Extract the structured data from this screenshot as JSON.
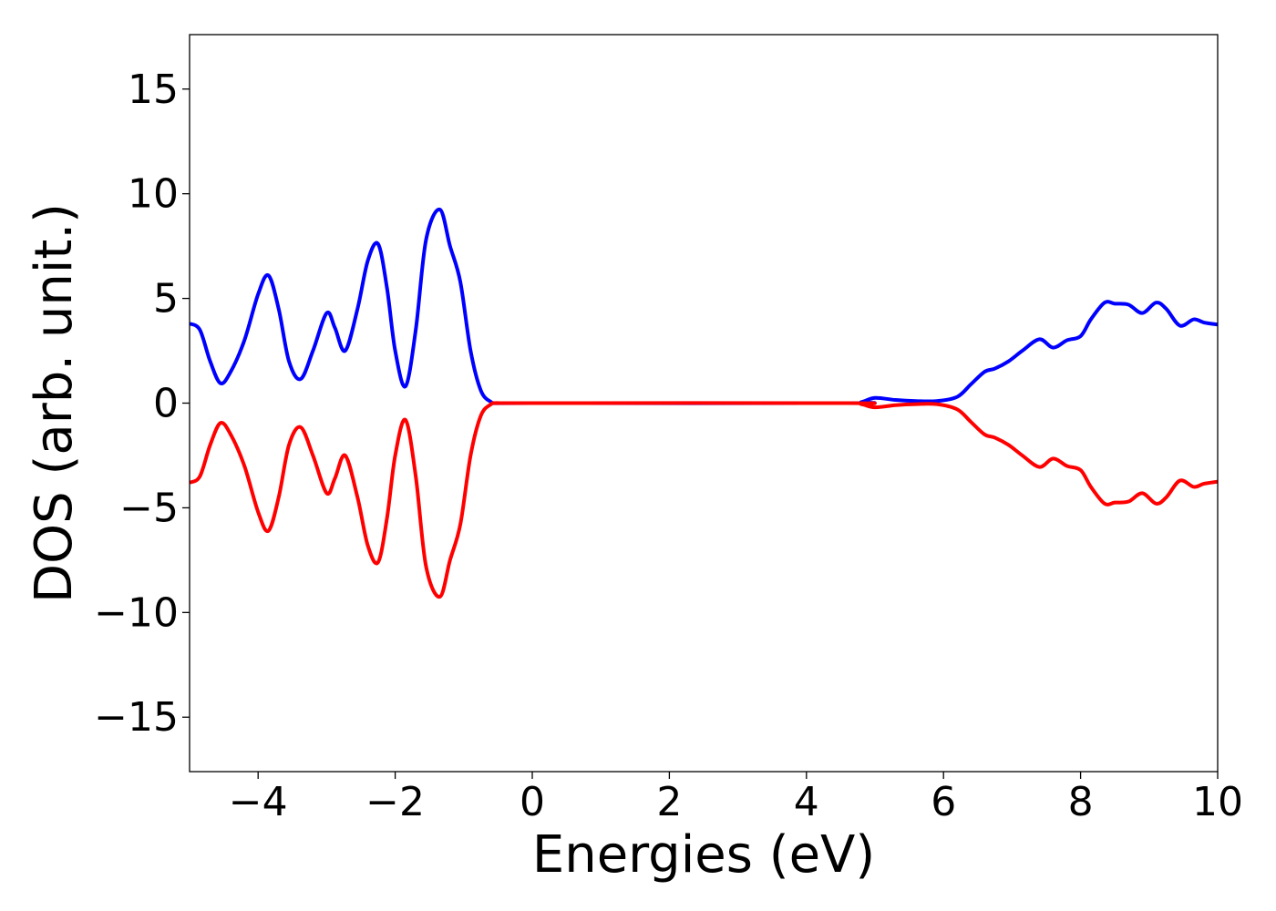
{
  "chart_data": {
    "type": "line",
    "title": "",
    "xlabel": "Energies (eV)",
    "ylabel": "DOS (arb. unit.)",
    "xlim": [
      -5,
      10
    ],
    "ylim": [
      -17.6,
      17.6
    ],
    "grid": false,
    "legend": "none",
    "x_ticks": [
      -4,
      -2,
      0,
      2,
      4,
      6,
      8,
      10
    ],
    "x_tick_labels": [
      "−4",
      "−2",
      "0",
      "2",
      "4",
      "6",
      "8",
      "10"
    ],
    "y_ticks": [
      15,
      10,
      5,
      0,
      -5,
      -10,
      -15
    ],
    "y_tick_labels": [
      "15",
      "10",
      "5",
      "0",
      "−5",
      "−10",
      "−15"
    ],
    "series": [
      {
        "color": "#0000ff",
        "x": [
          -5.0,
          -4.85,
          -4.7,
          -4.55,
          -4.4,
          -4.2,
          -4.0,
          -3.85,
          -3.7,
          -3.55,
          -3.38,
          -3.2,
          -3.0,
          -2.88,
          -2.73,
          -2.55,
          -2.4,
          -2.25,
          -2.12,
          -2.0,
          -1.85,
          -1.7,
          -1.55,
          -1.35,
          -1.2,
          -1.05,
          -0.9,
          -0.75,
          -0.6,
          -0.5,
          0.0,
          4.6,
          4.8,
          5.0,
          5.3,
          5.6,
          5.9,
          6.2,
          6.4,
          6.6,
          6.75,
          6.95,
          7.15,
          7.4,
          7.6,
          7.8,
          8.0,
          8.15,
          8.35,
          8.5,
          8.7,
          8.9,
          9.1,
          9.25,
          9.45,
          9.65,
          9.8,
          10.0
        ],
        "y": [
          3.8,
          3.5,
          2.0,
          0.95,
          1.5,
          3.0,
          5.2,
          6.1,
          4.5,
          2.0,
          1.15,
          2.5,
          4.3,
          3.6,
          2.5,
          4.5,
          6.8,
          7.6,
          5.5,
          2.5,
          0.8,
          3.5,
          7.8,
          9.25,
          7.5,
          5.8,
          2.5,
          0.6,
          0.05,
          0.0,
          0.0,
          0.0,
          0.05,
          0.25,
          0.15,
          0.1,
          0.1,
          0.3,
          0.9,
          1.5,
          1.65,
          2.0,
          2.5,
          3.05,
          2.65,
          3.0,
          3.2,
          4.0,
          4.8,
          4.75,
          4.7,
          4.3,
          4.8,
          4.5,
          3.7,
          4.0,
          3.85,
          3.75
        ]
      },
      {
        "color": "#ff0000",
        "x": [
          -5.0,
          -4.85,
          -4.7,
          -4.55,
          -4.4,
          -4.2,
          -4.0,
          -3.85,
          -3.7,
          -3.55,
          -3.38,
          -3.2,
          -3.0,
          -2.88,
          -2.73,
          -2.55,
          -2.4,
          -2.25,
          -2.12,
          -2.0,
          -1.85,
          -1.7,
          -1.55,
          -1.35,
          -1.2,
          -1.05,
          -0.9,
          -0.75,
          -0.6,
          -0.5,
          0.0,
          4.6,
          4.8,
          5.0,
          5.3,
          5.6,
          5.9,
          6.2,
          6.4,
          6.6,
          6.75,
          6.95,
          7.15,
          7.4,
          7.6,
          7.8,
          8.0,
          8.15,
          8.35,
          8.5,
          8.7,
          8.9,
          9.1,
          9.25,
          9.45,
          9.65,
          9.8,
          10.0
        ],
        "y": [
          -3.8,
          -3.5,
          -2.0,
          -0.95,
          -1.5,
          -3.0,
          -5.2,
          -6.1,
          -4.5,
          -2.0,
          -1.15,
          -2.5,
          -4.3,
          -3.6,
          -2.5,
          -4.5,
          -6.8,
          -7.6,
          -5.5,
          -2.5,
          -0.8,
          -3.5,
          -7.8,
          -9.25,
          -7.5,
          -5.8,
          -2.5,
          -0.6,
          -0.05,
          0.0,
          0.0,
          0.0,
          -0.05,
          -0.2,
          -0.1,
          -0.05,
          -0.05,
          -0.3,
          -0.9,
          -1.5,
          -1.65,
          -2.0,
          -2.5,
          -3.05,
          -2.65,
          -3.0,
          -3.2,
          -4.0,
          -4.8,
          -4.75,
          -4.7,
          -4.3,
          -4.8,
          -4.5,
          -3.7,
          -4.0,
          -3.85,
          -3.75
        ]
      }
    ]
  }
}
